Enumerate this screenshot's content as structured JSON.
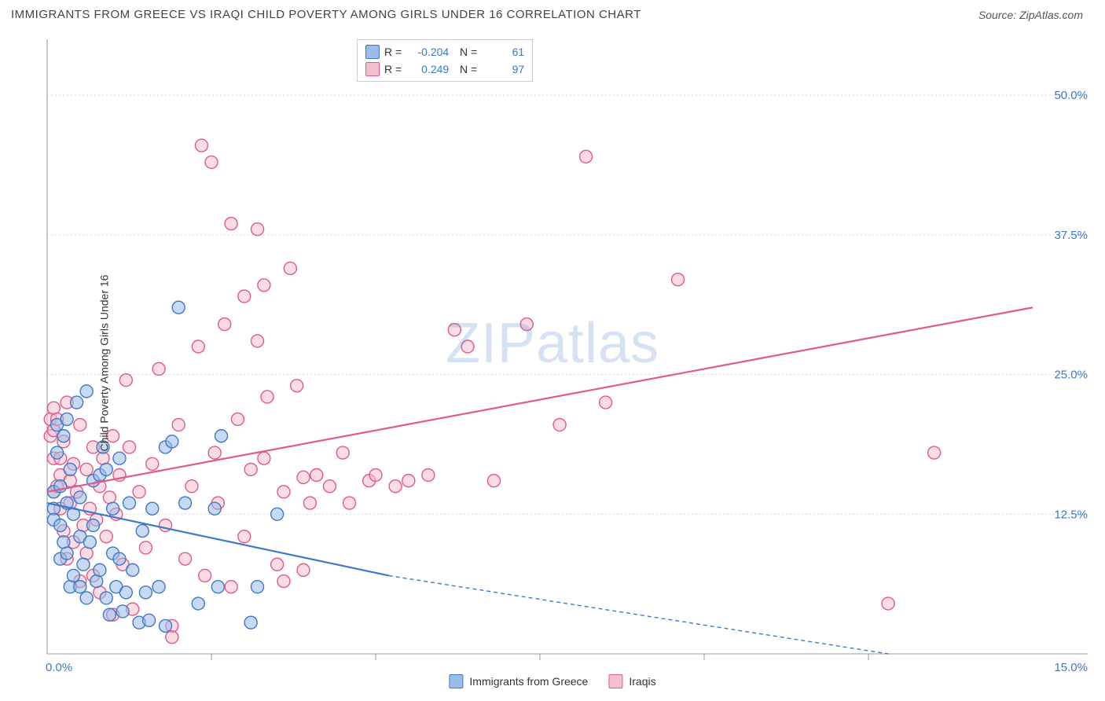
{
  "header": {
    "title": "IMMIGRANTS FROM GREECE VS IRAQI CHILD POVERTY AMONG GIRLS UNDER 16 CORRELATION CHART",
    "source_prefix": "Source: ",
    "source_name": "ZipAtlas.com"
  },
  "ylabel": "Child Poverty Among Girls Under 16",
  "watermark": "ZIPatlas",
  "chart": {
    "type": "scatter",
    "xlim": [
      0,
      15
    ],
    "ylim": [
      0,
      55
    ],
    "x_ticks": [
      0,
      15
    ],
    "x_tick_labels": [
      "0.0%",
      "15.0%"
    ],
    "x_minor_ticks": [
      2.5,
      5.0,
      7.5,
      10.0,
      12.5
    ],
    "y_ticks": [
      12.5,
      25.0,
      37.5,
      50.0
    ],
    "y_tick_labels": [
      "12.5%",
      "25.0%",
      "37.5%",
      "50.0%"
    ],
    "background_color": "#ffffff",
    "grid_color": "#d8d8d8",
    "axis_color": "#999999",
    "tick_label_color": "#3b78c9",
    "marker_radius": 8,
    "marker_stroke_width": 1.4,
    "series": [
      {
        "name": "Immigrants from Greece",
        "color_fill": "#9bbce8",
        "color_stroke": "#3e78c9",
        "fill_opacity": 0.55,
        "R": "-0.204",
        "N": "61",
        "regression": {
          "x1": 0,
          "y1": 13.5,
          "x2": 5.2,
          "y2": 7.0
        },
        "regression_ext": {
          "x1": 5.2,
          "y1": 7.0,
          "x2": 12.8,
          "y2": 0.0
        },
        "line_width": 2.2,
        "points": [
          [
            0.1,
            13.0
          ],
          [
            0.1,
            14.5
          ],
          [
            0.1,
            12.0
          ],
          [
            0.15,
            20.5
          ],
          [
            0.15,
            18.0
          ],
          [
            0.2,
            8.5
          ],
          [
            0.2,
            15.0
          ],
          [
            0.2,
            11.5
          ],
          [
            0.25,
            19.5
          ],
          [
            0.25,
            10.0
          ],
          [
            0.3,
            13.5
          ],
          [
            0.3,
            21.0
          ],
          [
            0.3,
            9.0
          ],
          [
            0.35,
            6.0
          ],
          [
            0.35,
            16.5
          ],
          [
            0.4,
            7.0
          ],
          [
            0.4,
            12.5
          ],
          [
            0.45,
            22.5
          ],
          [
            0.5,
            6.0
          ],
          [
            0.5,
            10.5
          ],
          [
            0.5,
            14.0
          ],
          [
            0.55,
            8.0
          ],
          [
            0.6,
            23.5
          ],
          [
            0.6,
            5.0
          ],
          [
            0.65,
            10.0
          ],
          [
            0.7,
            11.5
          ],
          [
            0.7,
            15.5
          ],
          [
            0.75,
            6.5
          ],
          [
            0.8,
            16.0
          ],
          [
            0.8,
            7.5
          ],
          [
            0.85,
            18.5
          ],
          [
            0.9,
            16.5
          ],
          [
            0.9,
            5.0
          ],
          [
            0.95,
            3.5
          ],
          [
            1.0,
            9.0
          ],
          [
            1.0,
            13.0
          ],
          [
            1.05,
            6.0
          ],
          [
            1.1,
            17.5
          ],
          [
            1.1,
            8.5
          ],
          [
            1.15,
            3.8
          ],
          [
            1.2,
            5.5
          ],
          [
            1.25,
            13.5
          ],
          [
            1.3,
            7.5
          ],
          [
            1.4,
            2.8
          ],
          [
            1.45,
            11.0
          ],
          [
            1.5,
            5.5
          ],
          [
            1.55,
            3.0
          ],
          [
            1.6,
            13.0
          ],
          [
            1.7,
            6.0
          ],
          [
            1.8,
            2.5
          ],
          [
            1.8,
            18.5
          ],
          [
            1.9,
            19.0
          ],
          [
            2.0,
            31.0
          ],
          [
            2.1,
            13.5
          ],
          [
            2.3,
            4.5
          ],
          [
            2.55,
            13.0
          ],
          [
            2.6,
            6.0
          ],
          [
            2.65,
            19.5
          ],
          [
            3.1,
            2.8
          ],
          [
            3.2,
            6.0
          ],
          [
            3.5,
            12.5
          ]
        ]
      },
      {
        "name": "Iraqis",
        "color_fill": "#f5c0ce",
        "color_stroke": "#e05a88",
        "fill_opacity": 0.55,
        "R": "0.249",
        "N": "97",
        "regression": {
          "x1": 0,
          "y1": 14.5,
          "x2": 15,
          "y2": 31.0
        },
        "line_width": 2.2,
        "points": [
          [
            0.05,
            21.0
          ],
          [
            0.05,
            19.5
          ],
          [
            0.1,
            22.0
          ],
          [
            0.1,
            17.5
          ],
          [
            0.1,
            14.5
          ],
          [
            0.1,
            20.0
          ],
          [
            0.15,
            21.0
          ],
          [
            0.15,
            15.0
          ],
          [
            0.2,
            17.5
          ],
          [
            0.2,
            13.0
          ],
          [
            0.2,
            16.0
          ],
          [
            0.25,
            19.0
          ],
          [
            0.25,
            11.0
          ],
          [
            0.3,
            22.5
          ],
          [
            0.3,
            8.5
          ],
          [
            0.35,
            15.5
          ],
          [
            0.35,
            13.5
          ],
          [
            0.4,
            17.0
          ],
          [
            0.4,
            10.0
          ],
          [
            0.45,
            14.5
          ],
          [
            0.5,
            20.5
          ],
          [
            0.5,
            6.5
          ],
          [
            0.55,
            11.5
          ],
          [
            0.6,
            16.5
          ],
          [
            0.6,
            9.0
          ],
          [
            0.65,
            13.0
          ],
          [
            0.7,
            18.5
          ],
          [
            0.7,
            7.0
          ],
          [
            0.75,
            12.0
          ],
          [
            0.8,
            15.0
          ],
          [
            0.8,
            5.5
          ],
          [
            0.85,
            17.5
          ],
          [
            0.9,
            10.5
          ],
          [
            0.95,
            14.0
          ],
          [
            1.0,
            19.5
          ],
          [
            1.0,
            3.5
          ],
          [
            1.05,
            12.5
          ],
          [
            1.1,
            16.0
          ],
          [
            1.15,
            8.0
          ],
          [
            1.2,
            24.5
          ],
          [
            1.25,
            18.5
          ],
          [
            1.3,
            4.0
          ],
          [
            1.4,
            14.5
          ],
          [
            1.5,
            9.5
          ],
          [
            1.6,
            17.0
          ],
          [
            1.7,
            25.5
          ],
          [
            1.8,
            11.5
          ],
          [
            1.9,
            2.5
          ],
          [
            1.9,
            1.5
          ],
          [
            2.0,
            20.5
          ],
          [
            2.1,
            8.5
          ],
          [
            2.2,
            15.0
          ],
          [
            2.3,
            27.5
          ],
          [
            2.35,
            45.5
          ],
          [
            2.4,
            7.0
          ],
          [
            2.5,
            44.0
          ],
          [
            2.55,
            18.0
          ],
          [
            2.6,
            13.5
          ],
          [
            2.7,
            29.5
          ],
          [
            2.8,
            6.0
          ],
          [
            2.8,
            38.5
          ],
          [
            2.9,
            21.0
          ],
          [
            3.0,
            10.5
          ],
          [
            3.0,
            32.0
          ],
          [
            3.1,
            16.5
          ],
          [
            3.2,
            28.0
          ],
          [
            3.2,
            38.0
          ],
          [
            3.3,
            33.0
          ],
          [
            3.3,
            17.5
          ],
          [
            3.35,
            23.0
          ],
          [
            3.5,
            8.0
          ],
          [
            3.6,
            14.5
          ],
          [
            3.6,
            6.5
          ],
          [
            3.7,
            34.5
          ],
          [
            3.8,
            24.0
          ],
          [
            3.9,
            15.8
          ],
          [
            3.9,
            7.5
          ],
          [
            4.0,
            13.5
          ],
          [
            4.1,
            16.0
          ],
          [
            4.3,
            15.0
          ],
          [
            4.5,
            18.0
          ],
          [
            4.6,
            13.5
          ],
          [
            4.9,
            15.5
          ],
          [
            5.0,
            16.0
          ],
          [
            5.3,
            15.0
          ],
          [
            5.5,
            15.5
          ],
          [
            5.8,
            16.0
          ],
          [
            6.2,
            29.0
          ],
          [
            6.4,
            27.5
          ],
          [
            6.8,
            15.5
          ],
          [
            7.3,
            29.5
          ],
          [
            7.8,
            20.5
          ],
          [
            8.2,
            44.5
          ],
          [
            8.5,
            22.5
          ],
          [
            9.6,
            33.5
          ],
          [
            12.8,
            4.5
          ],
          [
            13.5,
            18.0
          ]
        ]
      }
    ]
  },
  "bottom_legend": [
    {
      "label": "Immigrants from Greece",
      "fill": "#9bbce8",
      "stroke": "#3e78c9"
    },
    {
      "label": "Iraqis",
      "fill": "#f5c0ce",
      "stroke": "#e05a88"
    }
  ]
}
